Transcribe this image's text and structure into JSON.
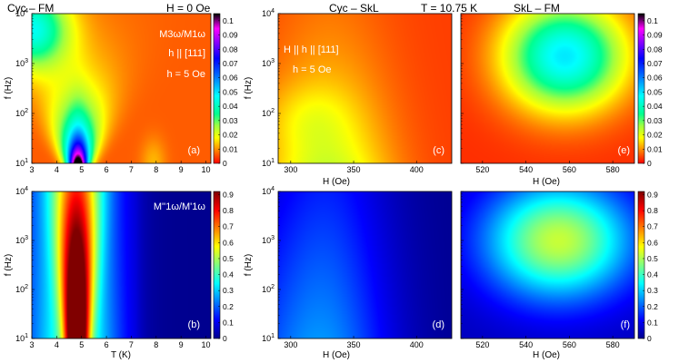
{
  "figure": {
    "header_left": "Cyc – FM",
    "header_H": "H = 0 Oe",
    "header_mid": "Cyc – SkL",
    "header_T": "T = 10.75 K",
    "header_right": "SkL – FM"
  },
  "chart_data": [
    {
      "type": "heatmap",
      "panel_label": "(a)",
      "quantity": "M3ω/M1ω",
      "annotations": [
        "h || [111]",
        "h = 5 Oe"
      ],
      "xlabel": "",
      "ylabel": "f (Hz)",
      "xlim": [
        3,
        10.2
      ],
      "xticks": [
        3,
        4,
        5,
        6,
        7,
        8,
        9,
        10
      ],
      "ylim": [
        10,
        10000
      ],
      "yscale": "log",
      "yticks": [
        "10^1",
        "10^2",
        "10^3",
        "10^4"
      ],
      "colorbar": {
        "min": 0,
        "max": 0.105,
        "ticks": [
          0,
          0.01,
          0.02,
          0.03,
          0.04,
          0.05,
          0.06,
          0.07,
          0.08,
          0.09,
          0.1
        ]
      },
      "peak": {
        "x": 4.85,
        "log_f_min": 1.0,
        "value_max": 0.105
      }
    },
    {
      "type": "heatmap",
      "panel_label": "(b)",
      "quantity": "M''1ω/M'1ω",
      "xlabel": "T (K)",
      "ylabel": "f (Hz)",
      "xlim": [
        3,
        10.2
      ],
      "xticks": [
        3,
        4,
        5,
        6,
        7,
        8,
        9,
        10
      ],
      "ylim": [
        10,
        10000
      ],
      "yscale": "log",
      "yticks": [
        "10^1",
        "10^2",
        "10^3",
        "10^4"
      ],
      "colorbar": {
        "min": 0,
        "max": 0.92,
        "ticks": [
          0,
          0.1,
          0.2,
          0.3,
          0.4,
          0.5,
          0.6,
          0.7,
          0.8,
          0.9
        ]
      },
      "peak": {
        "x": 4.8,
        "log_f_min": 1.0,
        "value_max": 0.9
      }
    },
    {
      "type": "heatmap",
      "panel_label": "(c)",
      "annotations": [
        "H || h || [111]",
        "h = 5 Oe"
      ],
      "xlabel": "H (Oe)",
      "ylabel": "f (Hz)",
      "xlim": [
        290,
        428
      ],
      "xticks": [
        300,
        350,
        400
      ],
      "ylim": [
        10,
        10000
      ],
      "yscale": "log",
      "yticks": [
        "10^1",
        "10^2",
        "10^3",
        "10^4"
      ],
      "uses_colorbar": "top"
    },
    {
      "type": "heatmap",
      "panel_label": "(d)",
      "xlabel": "H (Oe)",
      "ylabel": "f (Hz)",
      "xlim": [
        290,
        428
      ],
      "xticks": [
        300,
        350,
        400
      ],
      "ylim": [
        10,
        10000
      ],
      "yscale": "log",
      "yticks": [
        "10^1",
        "10^2",
        "10^3",
        "10^4"
      ],
      "uses_colorbar": "bottom"
    },
    {
      "type": "heatmap",
      "panel_label": "(e)",
      "xlabel": "H (Oe)",
      "ylabel": "",
      "xlim": [
        510,
        590
      ],
      "xticks": [
        520,
        540,
        560,
        580
      ],
      "ylim": [
        10,
        10000
      ],
      "yscale": "log",
      "colorbar": {
        "min": 0,
        "max": 0.105,
        "ticks": [
          0,
          0.01,
          0.02,
          0.03,
          0.04,
          0.05,
          0.06,
          0.07,
          0.08,
          0.09,
          0.1
        ]
      },
      "peak": {
        "x": 558,
        "log_f": 3.15,
        "value_max": 0.045
      }
    },
    {
      "type": "heatmap",
      "panel_label": "(f)",
      "xlabel": "H (Oe)",
      "ylabel": "",
      "xlim": [
        510,
        590
      ],
      "xticks": [
        520,
        540,
        560,
        580
      ],
      "ylim": [
        10,
        10000
      ],
      "yscale": "log",
      "colorbar": {
        "min": 0,
        "max": 0.92,
        "ticks": [
          0,
          0.1,
          0.2,
          0.3,
          0.4,
          0.5,
          0.6,
          0.7,
          0.8,
          0.9
        ]
      },
      "peak": {
        "x": 555,
        "log_f": 3.0,
        "value_max": 0.5
      }
    }
  ]
}
